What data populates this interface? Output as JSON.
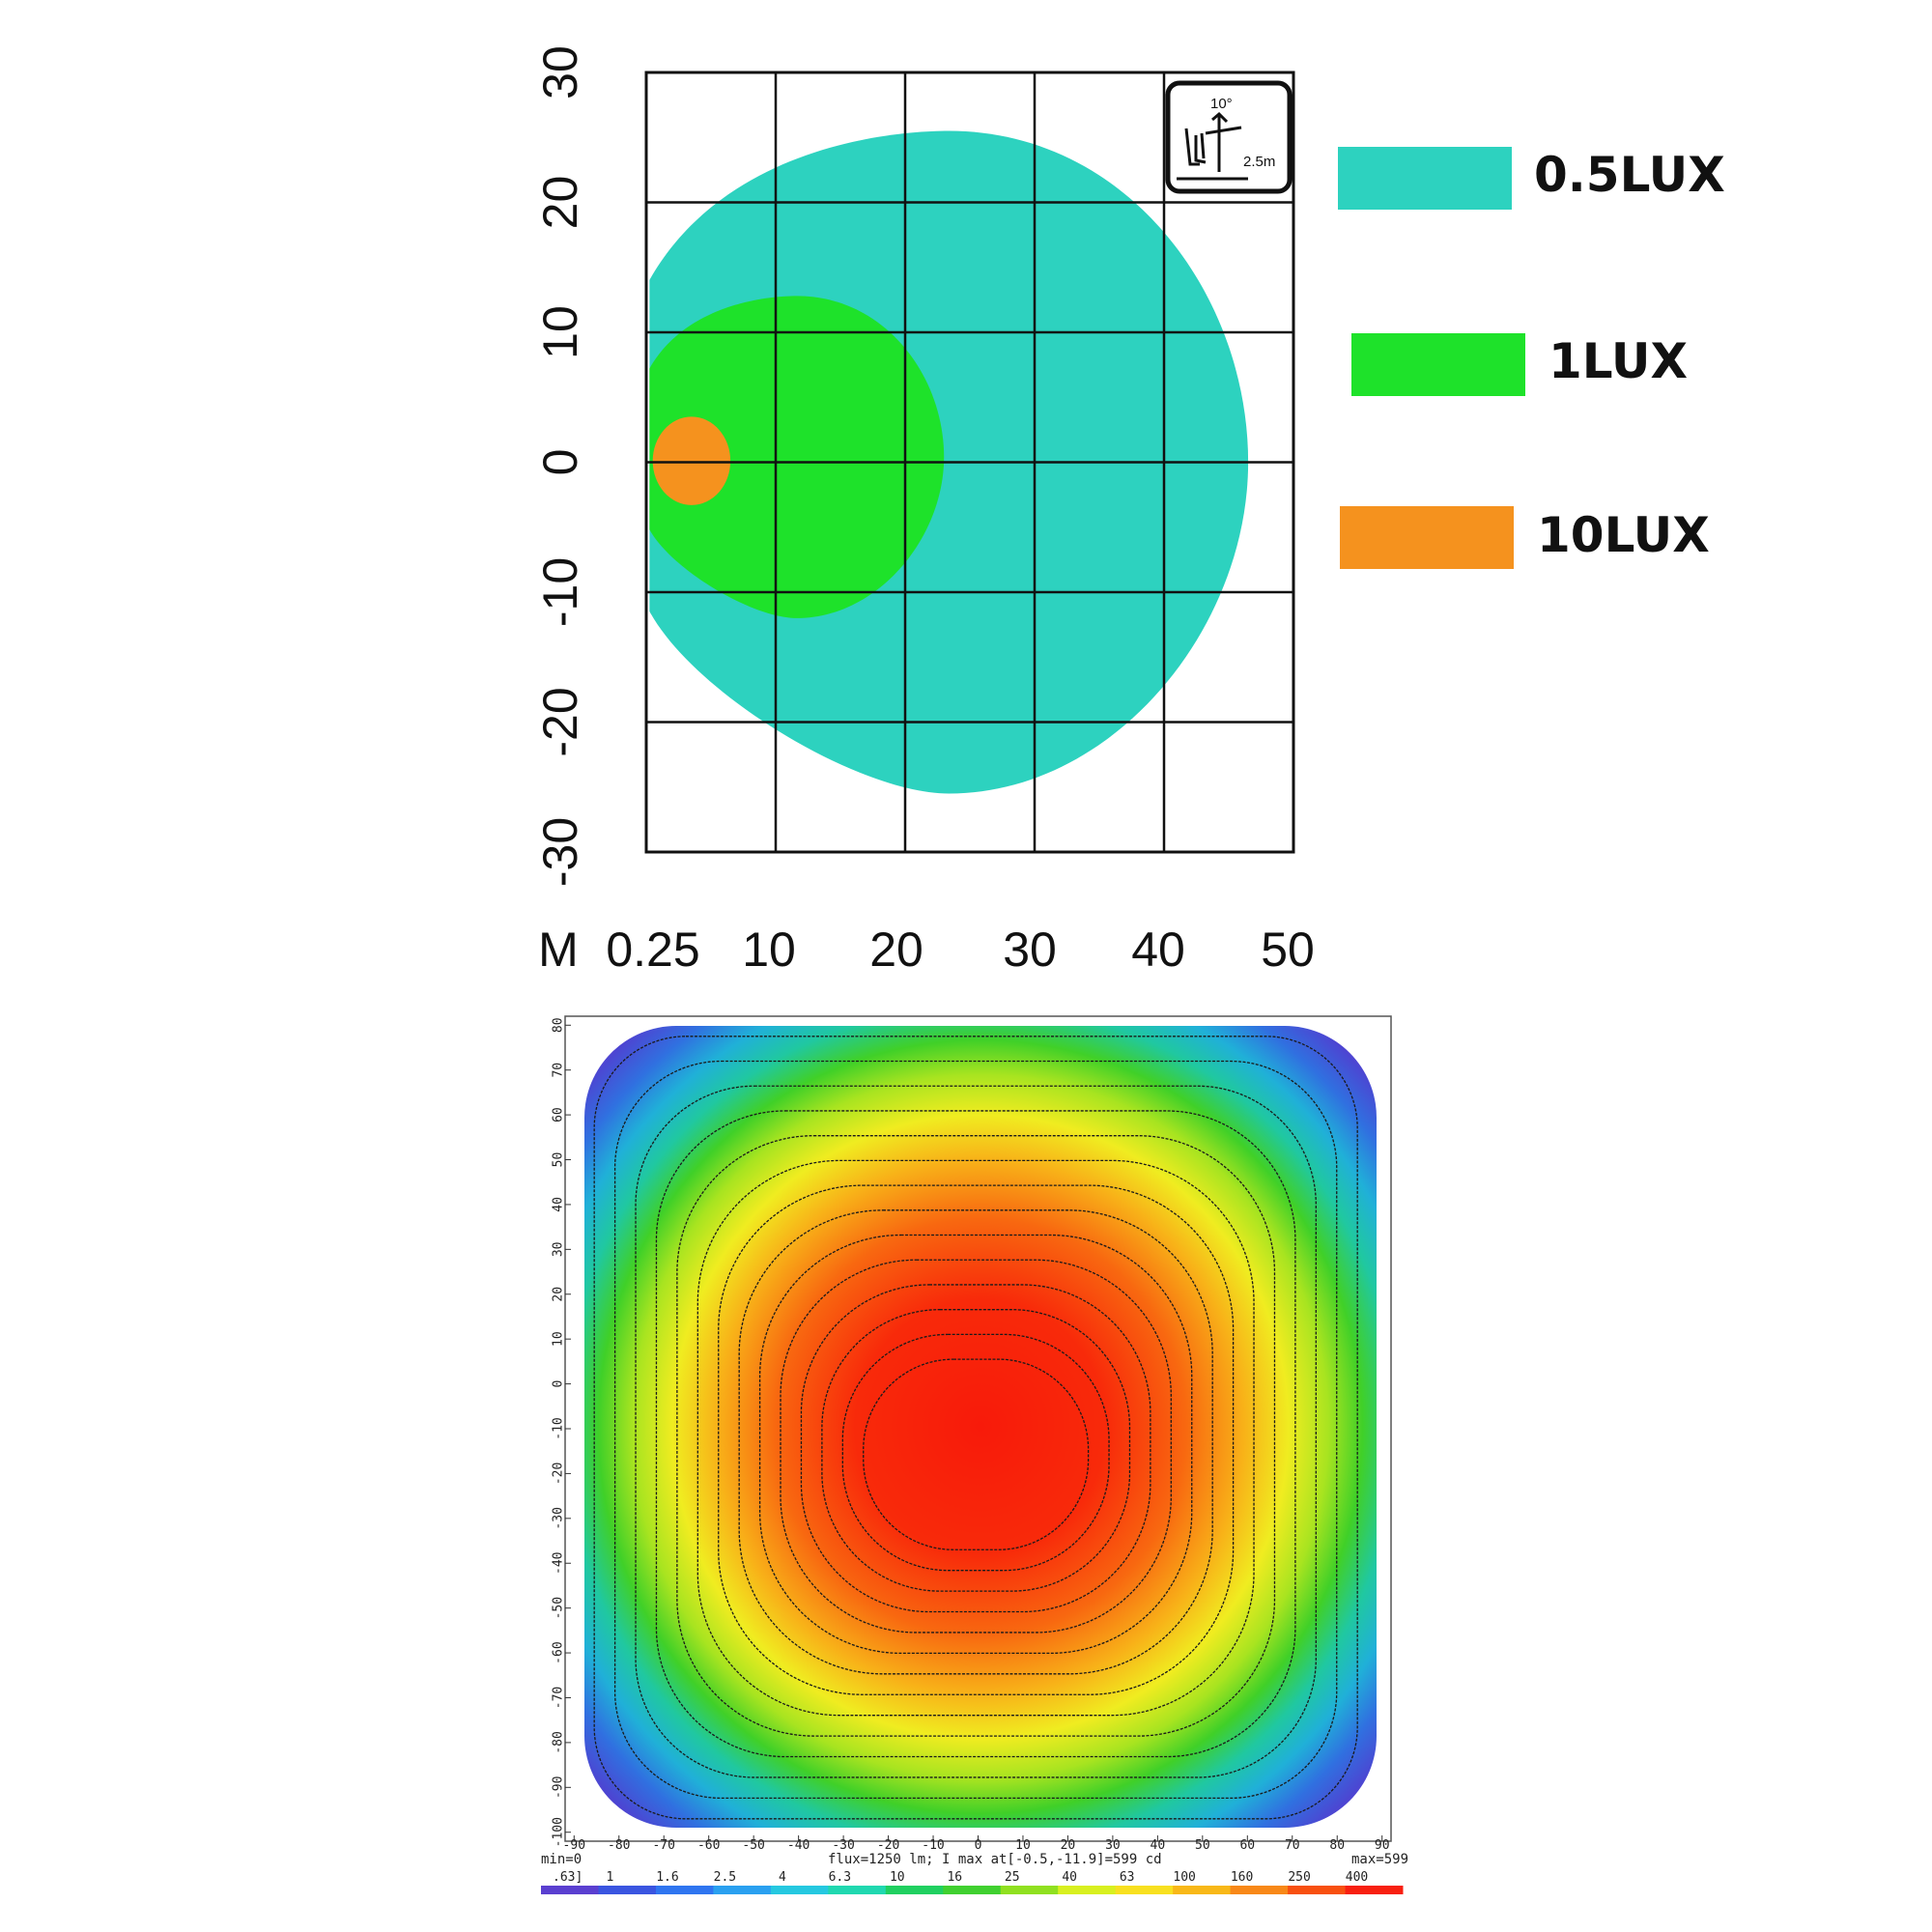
{
  "chart_data": [
    {
      "type": "area",
      "x_unit": "M",
      "x_ticks": [
        "0.25",
        "10",
        "20",
        "30",
        "40",
        "50"
      ],
      "y_ticks": [
        "30",
        "20",
        "10",
        "0",
        "-10",
        "-20",
        "-30"
      ],
      "xlim": [
        0,
        50
      ],
      "ylim": [
        -30,
        30
      ],
      "grid": true,
      "legend_position": "right",
      "inset": {
        "angle_label": "10°",
        "height_label": "2.5m"
      },
      "series": [
        {
          "name": "0.5LUX",
          "color": "#2dd2bf",
          "x_range": [
            0.25,
            46.5
          ],
          "y_range": [
            -25.5,
            25.5
          ]
        },
        {
          "name": "1LUX",
          "color": "#1ee22a",
          "x_range": [
            0.25,
            23
          ],
          "y_range": [
            -12,
            12.8
          ]
        },
        {
          "name": "10LUX",
          "color": "#f5921e",
          "x_range": [
            0.5,
            6.5
          ],
          "y_range": [
            -3.3,
            3.5
          ]
        }
      ]
    },
    {
      "type": "heatmap",
      "x_ticks": [
        "-90",
        "-80",
        "-70",
        "-60",
        "-50",
        "-40",
        "-30",
        "-20",
        "-10",
        "0",
        "10",
        "20",
        "30",
        "40",
        "50",
        "60",
        "70",
        "80",
        "90"
      ],
      "y_ticks": [
        "80",
        "70",
        "60",
        "50",
        "40",
        "30",
        "20",
        "10",
        "0",
        "-10",
        "-20",
        "-30",
        "-40",
        "-50",
        "-60",
        "-70",
        "-80",
        "-90",
        "-100"
      ],
      "xlim": [
        -92,
        92
      ],
      "ylim": [
        -102,
        82
      ],
      "min_label": "min=0",
      "max_label": "max=599",
      "info_label": "flux=1250 lm; I max at[-0.5,-11.9]=599 cd",
      "peak": {
        "x": -0.5,
        "y": -11.9,
        "value": 599
      },
      "colorbar_labels": [
        ".63]",
        "1",
        "1.6",
        "2.5",
        "4",
        "6.3",
        "10",
        "16",
        "25",
        "40",
        "63",
        "100",
        "160",
        "250",
        "400"
      ],
      "colorbar_colors": [
        "#5a3fd0",
        "#3a55e0",
        "#2f75f0",
        "#2aa0f0",
        "#25c8e0",
        "#20d8b0",
        "#20d060",
        "#40d030",
        "#90e020",
        "#d8f020",
        "#f8e020",
        "#f8b818",
        "#f88818",
        "#f85010",
        "#f82010"
      ]
    }
  ]
}
